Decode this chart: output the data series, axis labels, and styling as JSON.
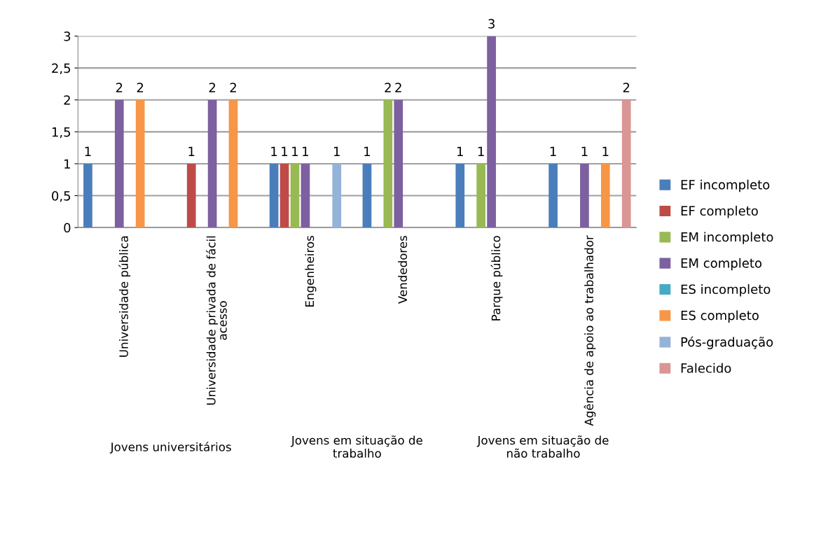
{
  "chart_data": {
    "type": "bar",
    "categories": [
      "Universidade pública",
      "Universidade privada de fácil acesso",
      "Engenheiros",
      "Vendedores",
      "Parque público",
      "Agência de apoio ao trabalhador"
    ],
    "series": [
      {
        "name": "EF incompleto",
        "color": "#4a7ebb",
        "values": [
          1,
          null,
          1,
          1,
          1,
          1
        ]
      },
      {
        "name": "EF completo",
        "color": "#be4b48",
        "values": [
          null,
          1,
          1,
          null,
          null,
          null
        ]
      },
      {
        "name": "EM incompleto",
        "color": "#98b954",
        "values": [
          null,
          null,
          1,
          2,
          1,
          null
        ]
      },
      {
        "name": "EM completo",
        "color": "#7d60a0",
        "values": [
          2,
          2,
          1,
          2,
          3,
          1
        ]
      },
      {
        "name": "ES incompleto",
        "color": "#46aac5",
        "values": [
          null,
          null,
          null,
          null,
          null,
          null
        ]
      },
      {
        "name": "ES completo",
        "color": "#f79646",
        "values": [
          2,
          2,
          null,
          null,
          null,
          1
        ]
      },
      {
        "name": "Pós-graduação",
        "color": "#95b3d7",
        "values": [
          null,
          null,
          1,
          null,
          null,
          null
        ]
      },
      {
        "name": "Falecido",
        "color": "#d99694",
        "values": [
          null,
          null,
          null,
          null,
          null,
          2
        ]
      }
    ],
    "annotations": [
      "Jovens universitários",
      "Jovens em situação de trabalho",
      "Jovens em situação de não trabalho"
    ],
    "ylim": [
      0,
      3
    ],
    "yticks": [
      0,
      {
        "value": 0.5,
        "label": "0,5"
      },
      1,
      {
        "value": 1.5,
        "label": "1,5"
      },
      2,
      {
        "value": 2.5,
        "label": "2,5"
      },
      3
    ],
    "grid": "y",
    "legend": "right",
    "data_labels": true
  }
}
